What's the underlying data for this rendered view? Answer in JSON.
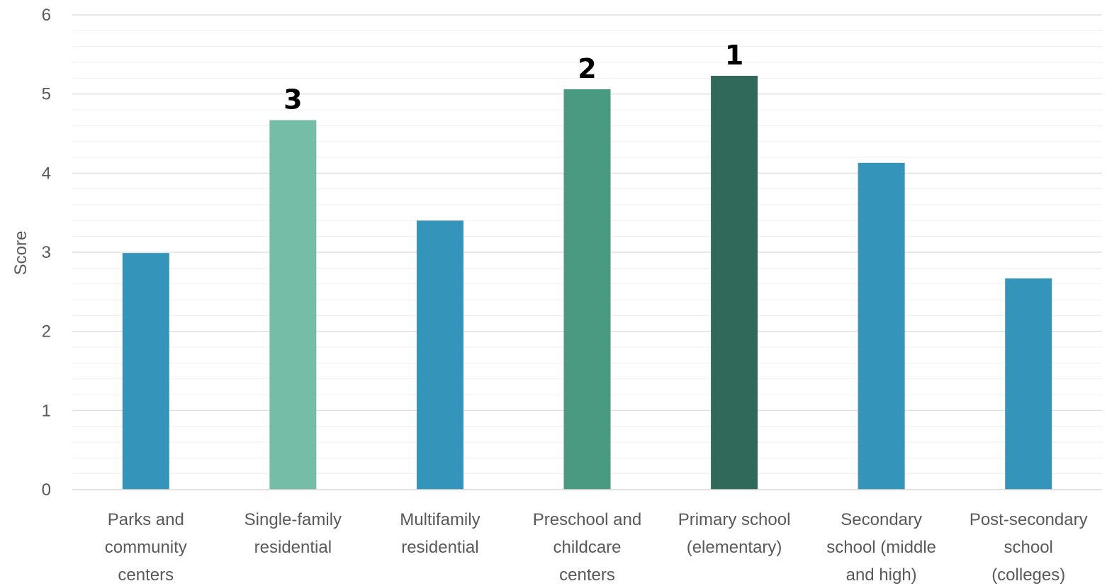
{
  "chart_data": {
    "type": "bar",
    "ylabel": "Score",
    "ylim": [
      0,
      6
    ],
    "y_ticks": [
      "0",
      "1",
      "2",
      "3",
      "4",
      "5",
      "6"
    ],
    "minor_gridlines_per_major": 5,
    "categories": [
      [
        "Parks and",
        "community",
        "centers"
      ],
      [
        "Single-family",
        "residential"
      ],
      [
        "Multifamily",
        "residential"
      ],
      [
        "Preschool and",
        "childcare",
        "centers"
      ],
      [
        "Primary school",
        "(elementary)"
      ],
      [
        "Secondary",
        "school (middle",
        "and high)"
      ],
      [
        "Post-secondary",
        "school",
        "(colleges)"
      ]
    ],
    "values": [
      2.99,
      4.67,
      3.4,
      5.06,
      5.23,
      4.13,
      2.67
    ],
    "bar_colors": [
      "#3494BA",
      "#75BDA7",
      "#3494BA",
      "#4A9A82",
      "#30695A",
      "#3494BA",
      "#3494BA"
    ],
    "rank_labels": [
      "",
      "3",
      "",
      "2",
      "1",
      "",
      ""
    ]
  }
}
